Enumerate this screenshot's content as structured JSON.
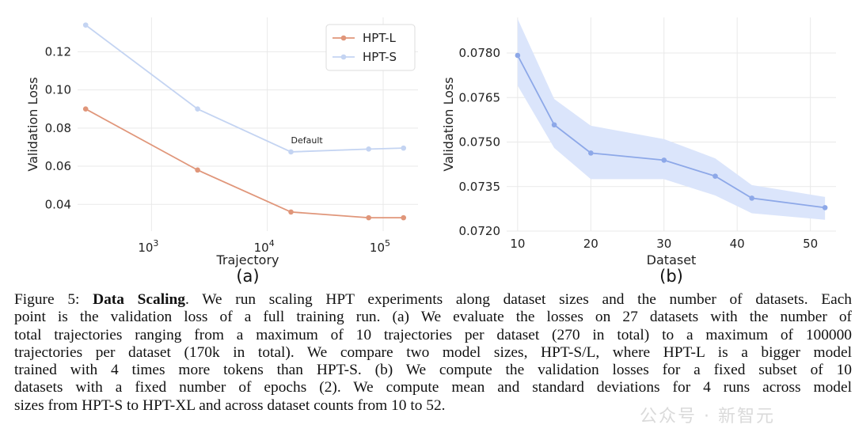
{
  "chart_data": [
    {
      "type": "line",
      "panel_label": "(a)",
      "xlabel": "Trajectory",
      "ylabel": "Validation Loss",
      "xscale": "log",
      "xlim": [
        230,
        200000
      ],
      "ylim": [
        0.026,
        0.138
      ],
      "x_ticks": [
        1000,
        10000,
        100000
      ],
      "x_tick_labels": [
        [
          "10",
          "3"
        ],
        [
          "10",
          "4"
        ],
        [
          "10",
          "5"
        ]
      ],
      "y_ticks": [
        0.04,
        0.06,
        0.08,
        0.1,
        0.12
      ],
      "y_tick_labels": [
        "0.04",
        "0.06",
        "0.08",
        "0.10",
        "0.12"
      ],
      "grid": true,
      "legend": "top-right",
      "series": [
        {
          "name": "HPT-L",
          "color": "#e0967a",
          "x": [
            270,
            2500,
            16000,
            75000,
            150000
          ],
          "y": [
            0.09,
            0.058,
            0.036,
            0.033,
            0.033
          ]
        },
        {
          "name": "HPT-S",
          "color": "#c4d4f2",
          "x": [
            270,
            2500,
            16000,
            75000,
            150000
          ],
          "y": [
            0.134,
            0.09,
            0.0675,
            0.069,
            0.0695
          ]
        }
      ],
      "annotations": [
        {
          "text": "Default",
          "x": 16000,
          "y": 0.0675
        }
      ]
    },
    {
      "type": "line",
      "panel_label": "(b)",
      "xlabel": "Dataset",
      "ylabel": "Validation Loss",
      "xlim": [
        8.5,
        53.5
      ],
      "ylim": [
        0.072,
        0.0792
      ],
      "x_ticks": [
        10,
        20,
        30,
        40,
        50
      ],
      "x_tick_labels": [
        "10",
        "20",
        "30",
        "40",
        "50"
      ],
      "y_ticks": [
        0.072,
        0.0735,
        0.075,
        0.0765,
        0.078
      ],
      "y_tick_labels": [
        "0.0720",
        "0.0735",
        "0.0750",
        "0.0765",
        "0.0780"
      ],
      "grid": true,
      "series": [
        {
          "color": "#8da8e8",
          "band_color": "#dbe5fb",
          "x": [
            10,
            15,
            20,
            30,
            37,
            42,
            52
          ],
          "y": [
            0.07792,
            0.07558,
            0.07463,
            0.07439,
            0.07385,
            0.07311,
            0.07279
          ],
          "lower": [
            0.0769,
            0.0748,
            0.07375,
            0.07375,
            0.0732,
            0.0726,
            0.07238
          ],
          "upper": [
            0.07915,
            0.07645,
            0.07555,
            0.0751,
            0.07445,
            0.07355,
            0.07315
          ]
        }
      ]
    }
  ],
  "caption": {
    "figure_label": "Figure 5:",
    "title": "Data Scaling",
    "lines": [
      ". We run scaling HPT experiments along dataset sizes and the number of datasets. Each",
      "point is the validation loss of a full training run. (a) We evaluate the losses on 27 datasets with the number of",
      "total trajectories ranging from a maximum of 10 trajectories per dataset (270 in total) to a maximum of 100000",
      "trajectories per dataset (170k in total). We compare two model sizes, HPT-S/L, where HPT-L is a bigger model",
      "trained with 4 times more tokens than HPT-S. (b) We compute the validation losses for a fixed subset of 10",
      "datasets with a fixed number of epochs (2). We compute mean and standard deviations for 4 runs across model",
      "sizes from HPT-S to HPT-XL and across dataset counts from 10 to 52."
    ]
  },
  "watermark": "公众号 · 新智元"
}
